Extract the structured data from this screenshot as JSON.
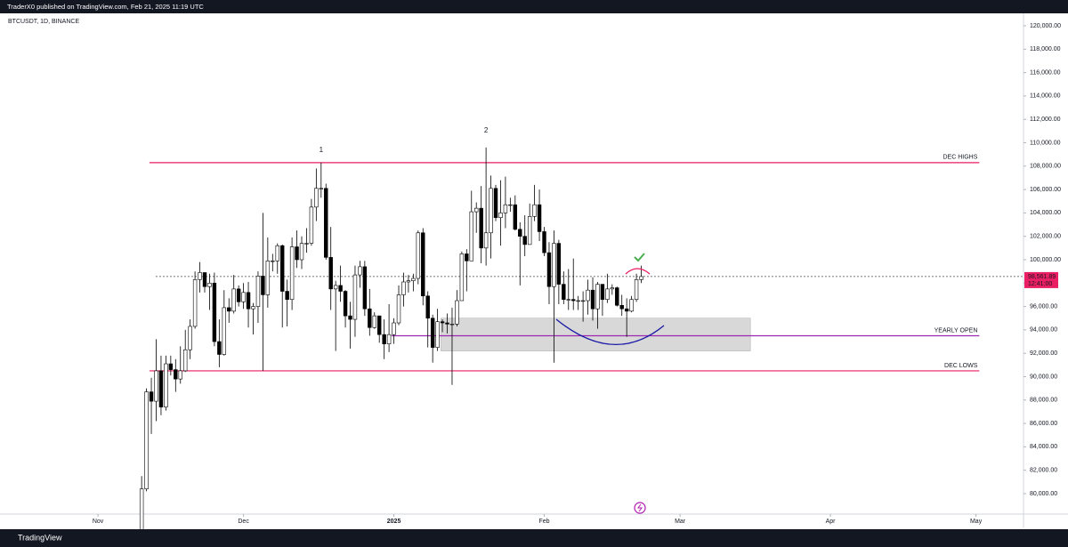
{
  "chart_data": {
    "type": "candlestick",
    "header": "TraderX0 published on TradingView.com, Feb 21, 2025 11:19 UTC",
    "symbol": "BTCUSDT, 1D, BINANCE",
    "brand": "TradingView",
    "up_color": "#ffffff",
    "down_color": "#000000",
    "wick_color": "#000000",
    "x": [
      0,
      1,
      2,
      3,
      4,
      5,
      6,
      7,
      8,
      9,
      10,
      11,
      12,
      13,
      14,
      15,
      16,
      17,
      18,
      19,
      20,
      21,
      22,
      23,
      24,
      25,
      26,
      27,
      28,
      29,
      30,
      31,
      32,
      33,
      34,
      35,
      36,
      37,
      38,
      39,
      40,
      41,
      42,
      43,
      44,
      45,
      46,
      47,
      48,
      49,
      50,
      51,
      52,
      53,
      54,
      55,
      56,
      57,
      58,
      59,
      60,
      61,
      62,
      63,
      64,
      65,
      66,
      67,
      68,
      69,
      70,
      71,
      72,
      73,
      74,
      75,
      76,
      77,
      78,
      79,
      80,
      81,
      82,
      83,
      84,
      85,
      86,
      87,
      88,
      89,
      90,
      91,
      92,
      93,
      94,
      95,
      96,
      97,
      98,
      99,
      100,
      101,
      102,
      103
    ],
    "open": [
      76700,
      80400,
      88700,
      87900,
      90500,
      87400,
      91100,
      90600,
      89800,
      90500,
      92300,
      94300,
      98300,
      98900,
      97700,
      98000,
      93000,
      91900,
      95900,
      95600,
      97500,
      96400,
      97200,
      95800,
      96000,
      98600,
      97000,
      99900,
      99900,
      101200,
      97300,
      96600,
      101100,
      100000,
      101400,
      101400,
      104500,
      106100,
      106100,
      100200,
      97500,
      97800,
      97300,
      95200,
      94900,
      98700,
      99400,
      95800,
      94200,
      95200,
      93600,
      92800,
      93600,
      94600,
      97000,
      98100,
      98200,
      98400,
      102300,
      96900,
      95000,
      92500,
      94700,
      94600,
      94500,
      94500,
      96500,
      100500,
      99900,
      104100,
      104400,
      101000,
      102300,
      106100,
      103600,
      104000,
      104700,
      104700,
      102600,
      102000,
      101300,
      103700,
      104700,
      102400,
      100600,
      97700,
      101400,
      97900,
      96600,
      96600,
      96500,
      96500,
      96500,
      97400,
      95800,
      97900,
      96600,
      97500,
      97600,
      96100,
      95800,
      95600,
      96600,
      98300
    ],
    "high": [
      81500,
      89000,
      89900,
      93200,
      91800,
      91800,
      91800,
      91500,
      92600,
      94000,
      94900,
      99000,
      99800,
      98900,
      98800,
      98900,
      94900,
      97400,
      96700,
      98700,
      97800,
      98000,
      98100,
      96300,
      99000,
      104000,
      101900,
      100500,
      101400,
      101300,
      98300,
      101900,
      102500,
      102000,
      102700,
      105200,
      107800,
      108300,
      106500,
      102800,
      98200,
      99500,
      97400,
      96400,
      99500,
      99900,
      99900,
      97500,
      95500,
      95200,
      94900,
      96200,
      95000,
      97800,
      98900,
      98700,
      98800,
      102500,
      102700,
      97300,
      95300,
      95800,
      94900,
      95400,
      95900,
      97400,
      100700,
      100900,
      105900,
      104900,
      106300,
      109600,
      107200,
      106400,
      106800,
      107100,
      105300,
      105500,
      103200,
      103800,
      104800,
      106400,
      106000,
      102800,
      101500,
      102500,
      101700,
      99000,
      99200,
      100100,
      96900,
      97300,
      98300,
      98500,
      98100,
      97900,
      98800,
      97900,
      97700,
      97000,
      96700,
      96900,
      98800,
      99500
    ],
    "low": [
      76500,
      80200,
      85100,
      86200,
      86700,
      87100,
      90100,
      88700,
      89400,
      90400,
      91500,
      94100,
      97200,
      97200,
      95700,
      92600,
      90800,
      91800,
      94600,
      95400,
      96000,
      95800,
      94200,
      93600,
      94600,
      90500,
      95900,
      99000,
      98800,
      94200,
      94300,
      95700,
      99300,
      99200,
      100600,
      101200,
      103300,
      105300,
      100000,
      95700,
      92200,
      96400,
      94200,
      92400,
      93400,
      97600,
      95200,
      93500,
      94100,
      92900,
      91500,
      92100,
      92800,
      94400,
      96000,
      97200,
      97300,
      97900,
      96100,
      92500,
      91200,
      92200,
      93800,
      93700,
      89300,
      94300,
      96500,
      97300,
      99900,
      102300,
      99700,
      99500,
      100100,
      103300,
      101200,
      102700,
      104100,
      102500,
      97800,
      100300,
      101300,
      103300,
      101600,
      100300,
      96200,
      91200,
      96200,
      96200,
      95700,
      95700,
      95700,
      94700,
      95300,
      94800,
      94100,
      95200,
      96300,
      97000,
      96000,
      95200,
      93400,
      95500,
      96400,
      98000
    ],
    "close": [
      80400,
      88700,
      87900,
      90500,
      87400,
      91100,
      90600,
      89800,
      90500,
      92300,
      94300,
      98300,
      98900,
      97700,
      98000,
      93000,
      91900,
      95900,
      95600,
      97500,
      96400,
      97200,
      95800,
      96000,
      98600,
      97000,
      99900,
      99900,
      101200,
      97300,
      96600,
      101100,
      100000,
      101400,
      101400,
      104500,
      106100,
      106100,
      100200,
      97500,
      97800,
      97300,
      95200,
      94900,
      98700,
      99400,
      95800,
      94200,
      95200,
      93600,
      92800,
      93600,
      94600,
      97000,
      98100,
      98200,
      98400,
      102300,
      96900,
      95000,
      92500,
      94700,
      94600,
      94500,
      94500,
      96500,
      100500,
      99900,
      104100,
      104400,
      101000,
      102300,
      106100,
      103600,
      104000,
      104700,
      104700,
      102600,
      102000,
      101300,
      103700,
      104700,
      102400,
      100600,
      97700,
      101400,
      97900,
      96600,
      96600,
      96500,
      96500,
      96500,
      97400,
      95800,
      97900,
      96600,
      97500,
      97600,
      96100,
      95800,
      95600,
      96600,
      98300,
      98561.89
    ],
    "xlim": [
      -29.2,
      181.8
    ],
    "xticks": [
      {
        "value": -9,
        "label": "Nov"
      },
      {
        "value": 21,
        "label": "Dec"
      },
      {
        "value": 52,
        "label": "2025"
      },
      {
        "value": 83,
        "label": "Feb"
      },
      {
        "value": 111,
        "label": "Mar"
      },
      {
        "value": 142,
        "label": "Apr"
      },
      {
        "value": 172,
        "label": "May"
      }
    ],
    "ylim": [
      78250,
      121065
    ],
    "yticks": [
      {
        "value": 80000,
        "label": "80,000.00"
      },
      {
        "value": 82000,
        "label": "82,000.00"
      },
      {
        "value": 84000,
        "label": "84,000.00"
      },
      {
        "value": 86000,
        "label": "86,000.00"
      },
      {
        "value": 88000,
        "label": "88,000.00"
      },
      {
        "value": 90000,
        "label": "90,000.00"
      },
      {
        "value": 92000,
        "label": "92,000.00"
      },
      {
        "value": 94000,
        "label": "94,000.00"
      },
      {
        "value": 96000,
        "label": "96,000.00"
      },
      {
        "value": 98000,
        "label": "98,000.00"
      },
      {
        "value": 100000,
        "label": "100,000.00"
      },
      {
        "value": 102000,
        "label": "102,000.00"
      },
      {
        "value": 104000,
        "label": "104,000.00"
      },
      {
        "value": 106000,
        "label": "106,000.00"
      },
      {
        "value": 108000,
        "label": "108,000.00"
      },
      {
        "value": 110000,
        "label": "110,000.00"
      },
      {
        "value": 112000,
        "label": "112,000.00"
      },
      {
        "value": 114000,
        "label": "114,000.00"
      },
      {
        "value": 116000,
        "label": "116,000.00"
      },
      {
        "value": 118000,
        "label": "118,000.00"
      },
      {
        "value": 120000,
        "label": "120,000.00"
      }
    ],
    "levels": [
      {
        "label": "DEC HIGHS",
        "value": 108300,
        "color": "#e91e63",
        "x_range": [
          1.6,
          172.7
        ]
      },
      {
        "label": "YEARLY OPEN",
        "value": 93500,
        "color": "#9c27b0",
        "x_range": [
          51.5,
          172.7
        ]
      },
      {
        "label": "DEC LOWS",
        "value": 90500,
        "color": "#e91e63",
        "x_range": [
          1.6,
          172.7
        ]
      }
    ],
    "zone": {
      "low": 92200,
      "high": 95000,
      "x_range": [
        61.7,
        125.5
      ],
      "color": "#c8c8c8"
    },
    "wave_labels": [
      {
        "text": "1",
        "x": 37,
        "y": 109350
      },
      {
        "text": "2",
        "x": 71,
        "y": 111030
      }
    ],
    "wave_color": "#1a1aa6",
    "current_price": {
      "value": 98561.89,
      "label": "98,561.89",
      "countdown": "12:41:00",
      "color": "#e91e63",
      "x_from": 2.9
    }
  }
}
